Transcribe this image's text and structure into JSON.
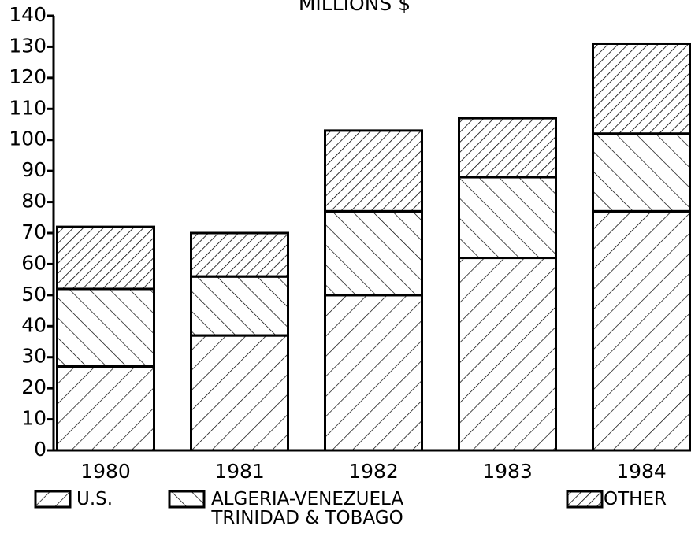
{
  "chart_data": {
    "type": "stacked-bar",
    "title": "MILLIONS $",
    "categories": [
      "1980",
      "1981",
      "1982",
      "1983",
      "1984"
    ],
    "series": [
      {
        "name": "U.S.",
        "color": "#000000",
        "hatch": "sparse-forward",
        "values": [
          27,
          37,
          50,
          62,
          77
        ]
      },
      {
        "name": "ALGERIA-VENEZUELA\nTRINIDAD & TOBAGO",
        "color": "#000000",
        "hatch": "backward",
        "values": [
          25,
          19,
          27,
          26,
          25
        ]
      },
      {
        "name": "OTHER",
        "color": "#000000",
        "hatch": "dense-forward",
        "values": [
          20,
          14,
          26,
          19,
          29
        ]
      }
    ],
    "ylim": [
      0,
      140
    ],
    "yticks": [
      0,
      10,
      20,
      30,
      40,
      50,
      60,
      70,
      80,
      90,
      100,
      110,
      120,
      130,
      140
    ]
  }
}
